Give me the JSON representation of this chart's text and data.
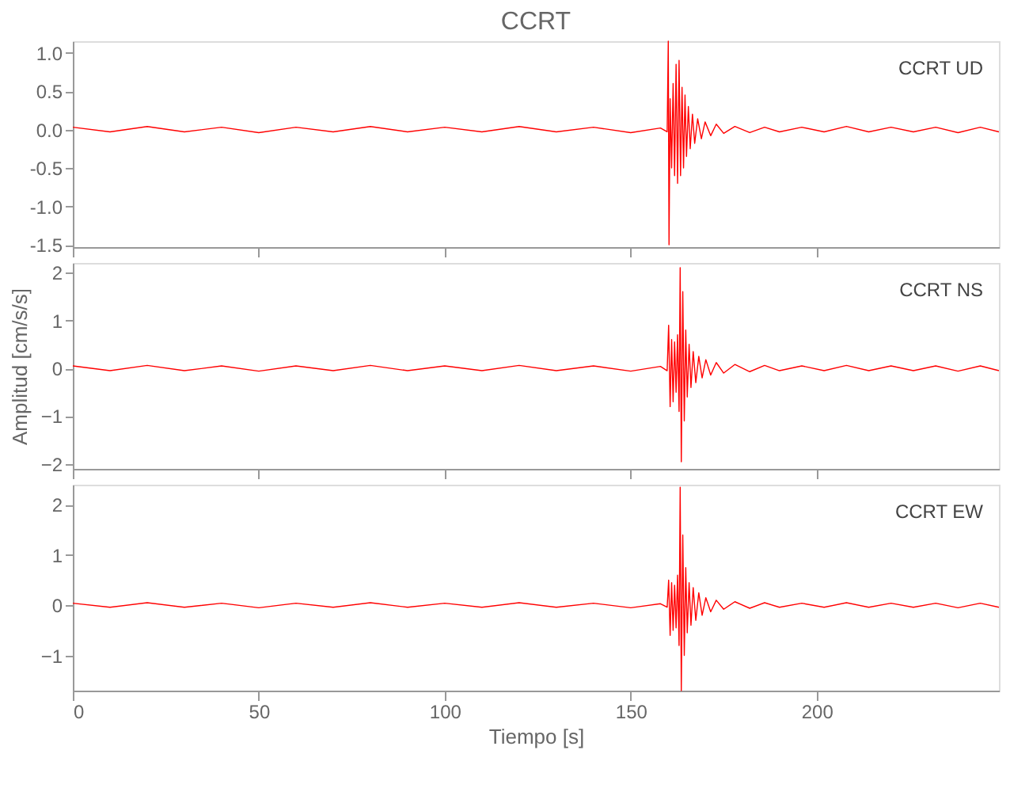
{
  "chart_data": [
    {
      "type": "line",
      "title": "CCRT",
      "annotations": [
        "CCRT UD"
      ],
      "xlim": [
        0,
        249
      ],
      "xticks": [
        0,
        50,
        100,
        150,
        200
      ],
      "ylim": [
        -1.53,
        1.15
      ],
      "yticks": [
        {
          "value": -1.5,
          "label": "-1.5"
        },
        {
          "value": -1.0,
          "label": "-1.0"
        },
        {
          "value": -0.5,
          "label": "-0.5"
        },
        {
          "value": 0,
          "label": "0.0"
        },
        {
          "value": 0.5,
          "label": "0.5"
        },
        {
          "value": 1.0,
          "label": "1.0"
        }
      ],
      "tick_labels": "y",
      "grid": false,
      "line_style": "solid",
      "marker": "none",
      "series": [
        {
          "color": "#ff0000",
          "x": [
            0,
            10,
            20,
            30,
            40,
            50,
            60,
            70,
            80,
            90,
            100,
            110,
            120,
            130,
            140,
            150,
            158,
            159.8,
            160.1,
            160.3,
            160.6,
            161,
            161.4,
            161.8,
            162.2,
            162.6,
            163,
            163.4,
            163.8,
            164.2,
            164.6,
            165,
            165.5,
            166,
            166.6,
            167.2,
            168,
            169,
            170,
            171.5,
            173,
            175,
            178,
            182,
            186,
            190,
            196,
            202,
            208,
            214,
            220,
            226,
            232,
            238,
            244,
            249
          ],
          "values": [
            0.03,
            -0.03,
            0.04,
            -0.03,
            0.03,
            -0.04,
            0.03,
            -0.03,
            0.04,
            -0.03,
            0.03,
            -0.03,
            0.04,
            -0.03,
            0.03,
            -0.04,
            0.02,
            -0.03,
            1.15,
            -1.5,
            0.4,
            -0.5,
            0.6,
            -0.6,
            0.85,
            -0.7,
            0.9,
            -0.6,
            0.55,
            -0.5,
            0.45,
            -0.35,
            0.3,
            -0.25,
            0.2,
            -0.18,
            0.14,
            -0.12,
            0.1,
            -0.08,
            0.07,
            -0.05,
            0.04,
            -0.04,
            0.03,
            -0.03,
            0.03,
            -0.03,
            0.04,
            -0.03,
            0.03,
            -0.03,
            0.03,
            -0.04,
            0.03,
            -0.03
          ]
        }
      ]
    },
    {
      "type": "line",
      "ylabel": "Amplitud [cm/s/s]",
      "annotations": [
        "CCRT NS"
      ],
      "xlim": [
        0,
        249
      ],
      "xticks": [
        0,
        50,
        100,
        150,
        200
      ],
      "ylim": [
        -2.1,
        2.2
      ],
      "yticks": [
        -2,
        -1,
        0,
        1,
        2
      ],
      "tick_labels": "y",
      "grid": false,
      "line_style": "solid",
      "marker": "none",
      "series": [
        {
          "color": "#ff0000",
          "x": [
            0,
            10,
            20,
            30,
            40,
            50,
            60,
            70,
            80,
            90,
            100,
            110,
            120,
            130,
            140,
            150,
            158,
            159.8,
            160.2,
            160.6,
            161,
            161.4,
            161.8,
            162.2,
            162.6,
            163,
            163.3,
            163.6,
            164,
            164.4,
            164.8,
            165.2,
            165.7,
            166.2,
            166.8,
            167.5,
            168.3,
            169.2,
            170.2,
            171.5,
            173,
            175,
            178,
            182,
            186,
            190,
            196,
            202,
            208,
            214,
            220,
            226,
            232,
            238,
            244,
            249
          ],
          "values": [
            0.05,
            -0.05,
            0.06,
            -0.05,
            0.05,
            -0.06,
            0.05,
            -0.05,
            0.06,
            -0.05,
            0.05,
            -0.05,
            0.06,
            -0.05,
            0.05,
            -0.06,
            0.04,
            -0.05,
            0.9,
            -0.8,
            0.6,
            -0.7,
            0.55,
            -0.5,
            0.7,
            -0.9,
            2.1,
            -1.95,
            1.6,
            -1.1,
            0.8,
            -0.6,
            0.5,
            -0.4,
            0.35,
            -0.3,
            0.25,
            -0.2,
            0.18,
            -0.14,
            0.12,
            -0.1,
            0.08,
            -0.07,
            0.06,
            -0.05,
            0.05,
            -0.05,
            0.06,
            -0.05,
            0.05,
            -0.05,
            0.05,
            -0.06,
            0.05,
            -0.05
          ]
        }
      ]
    },
    {
      "type": "line",
      "xlabel": "Tiempo [s]",
      "annotations": [
        "CCRT EW"
      ],
      "xlim": [
        0,
        249
      ],
      "xticks": [
        0,
        50,
        100,
        150,
        200
      ],
      "ylim": [
        -1.7,
        2.4
      ],
      "yticks": [
        -1,
        0,
        1,
        2
      ],
      "grid": false,
      "line_style": "solid",
      "marker": "none",
      "series": [
        {
          "color": "#ff0000",
          "x": [
            0,
            10,
            20,
            30,
            40,
            50,
            60,
            70,
            80,
            90,
            100,
            110,
            120,
            130,
            140,
            150,
            158,
            159.8,
            160.2,
            160.6,
            161,
            161.4,
            161.8,
            162.2,
            162.6,
            163,
            163.3,
            163.6,
            164,
            164.4,
            164.8,
            165.2,
            165.7,
            166.2,
            166.8,
            167.5,
            168.3,
            169.2,
            170.2,
            171.5,
            173,
            175,
            178,
            182,
            186,
            190,
            196,
            202,
            208,
            214,
            220,
            226,
            232,
            238,
            244,
            249
          ],
          "values": [
            0.04,
            -0.04,
            0.05,
            -0.04,
            0.04,
            -0.05,
            0.04,
            -0.04,
            0.05,
            -0.04,
            0.04,
            -0.04,
            0.05,
            -0.04,
            0.04,
            -0.05,
            0.03,
            -0.04,
            0.5,
            -0.6,
            0.45,
            -0.5,
            0.4,
            -0.45,
            0.6,
            -0.8,
            2.35,
            -1.7,
            1.4,
            -1.0,
            0.75,
            -0.55,
            0.45,
            -0.4,
            0.35,
            -0.3,
            0.25,
            -0.2,
            0.15,
            -0.13,
            0.1,
            -0.08,
            0.07,
            -0.06,
            0.05,
            -0.04,
            0.04,
            -0.04,
            0.05,
            -0.04,
            0.04,
            -0.04,
            0.04,
            -0.05,
            0.04,
            -0.04
          ]
        }
      ]
    }
  ]
}
